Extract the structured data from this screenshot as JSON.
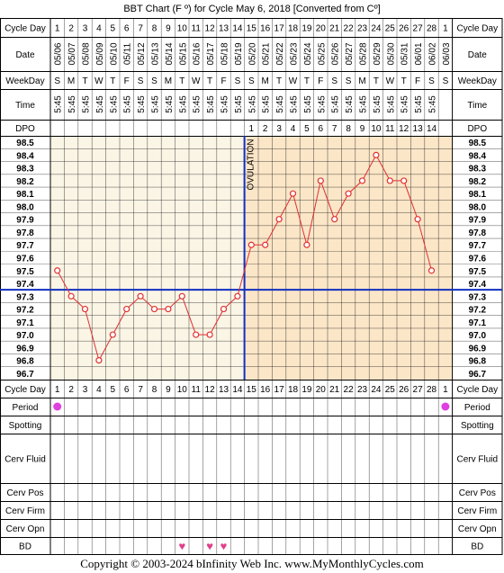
{
  "title": "BBT Chart (F º) for Cycle May 6, 2018  [Converted from Cº]",
  "footer": "Copyright © 2003-2024 bInfinity Web Inc.    www.MyMonthlyCycles.com",
  "row_labels": {
    "cycle_day": "Cycle Day",
    "date": "Date",
    "weekday": "WeekDay",
    "time": "Time",
    "dpo": "DPO",
    "period": "Period",
    "spotting": "Spotting",
    "cerv_fluid": "Cerv Fluid",
    "cerv_pos": "Cerv Pos",
    "cerv_firm": "Cerv Firm",
    "cerv_opn": "Cerv Opn",
    "bd": "BD"
  },
  "ovulation_label": "OVULATION",
  "colors": {
    "pre_ovulation_bg": "#fbf5e6",
    "post_ovulation_bg": "#fbe6c8",
    "temp_line": "#e03030",
    "coverline": "#1030c0",
    "period_dot": "#e040e0",
    "bd_heart": "#e0408a"
  },
  "chart_data": {
    "type": "line",
    "title": "BBT Chart (F º) for Cycle May 6, 2018  [Converted from Cº]",
    "x": [
      1,
      2,
      3,
      4,
      5,
      6,
      7,
      8,
      9,
      10,
      11,
      12,
      13,
      14,
      15,
      16,
      17,
      18,
      19,
      20,
      21,
      22,
      23,
      24,
      25,
      26,
      27,
      28,
      1
    ],
    "dates": [
      "05/06",
      "05/07",
      "05/08",
      "05/09",
      "05/10",
      "05/11",
      "05/12",
      "05/13",
      "05/14",
      "05/15",
      "05/16",
      "05/17",
      "05/18",
      "05/19",
      "05/20",
      "05/21",
      "05/22",
      "05/23",
      "05/24",
      "05/25",
      "05/26",
      "05/27",
      "05/28",
      "05/29",
      "05/30",
      "05/31",
      "06/01",
      "06/02",
      "06/03"
    ],
    "weekdays": [
      "S",
      "M",
      "T",
      "W",
      "T",
      "F",
      "S",
      "S",
      "M",
      "T",
      "W",
      "T",
      "F",
      "S",
      "S",
      "M",
      "T",
      "W",
      "T",
      "F",
      "S",
      "S",
      "M",
      "T",
      "W",
      "T",
      "F",
      "S",
      "S"
    ],
    "times": [
      "5:45",
      "5:45",
      "5:45",
      "5:45",
      "5:45",
      "5:45",
      "5:45",
      "5:45",
      "5:45",
      "5:45",
      "5:45",
      "5:45",
      "5:45",
      "5:45",
      "5:45",
      "5:45",
      "5:45",
      "5:45",
      "5:45",
      "5:45",
      "5:45",
      "5:45",
      "5:45",
      "5:45",
      "5:45",
      "5:45",
      "5:45",
      "5:45",
      ""
    ],
    "dpo": [
      "",
      "",
      "",
      "",
      "",
      "",
      "",
      "",
      "",
      "",
      "",
      "",
      "",
      "",
      1,
      2,
      3,
      4,
      5,
      6,
      7,
      8,
      9,
      10,
      11,
      12,
      13,
      14,
      ""
    ],
    "series": [
      {
        "values": [
          97.5,
          97.3,
          97.2,
          96.8,
          97.0,
          97.2,
          97.3,
          97.2,
          97.2,
          97.3,
          97.0,
          97.0,
          97.2,
          97.3,
          97.7,
          97.7,
          97.9,
          98.1,
          97.7,
          98.2,
          97.9,
          98.1,
          98.2,
          98.4,
          98.2,
          98.2,
          97.9,
          97.5,
          null
        ]
      }
    ],
    "y_ticks": [
      "98.5",
      "98.4",
      "98.3",
      "98.2",
      "98.1",
      "98.0",
      "97.9",
      "97.8",
      "97.7",
      "97.6",
      "97.5",
      "97.4",
      "97.3",
      "97.2",
      "97.1",
      "97.0",
      "96.9",
      "96.8",
      "96.7"
    ],
    "ylim": [
      96.7,
      98.5
    ],
    "coverline": 97.4,
    "ovulation_day": 14,
    "period_days": [
      1,
      29
    ],
    "bd_days": [
      10,
      12,
      13
    ]
  }
}
